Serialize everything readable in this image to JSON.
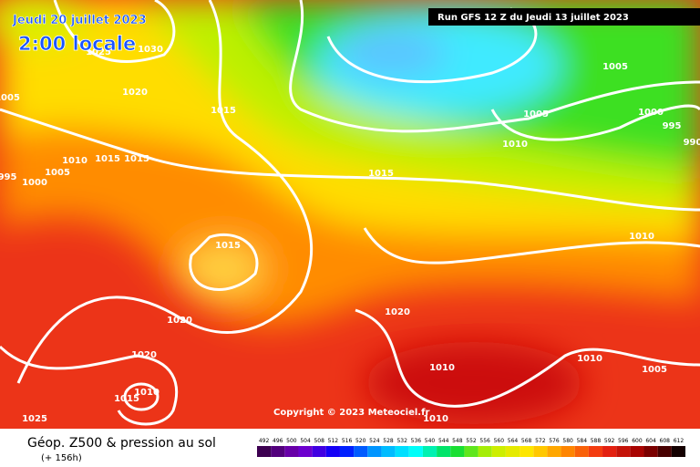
{
  "header": {
    "date": "Jeudi 20 juillet 2023",
    "time": "2:00 locale",
    "run": "Run GFS 12 Z du Jeudi 13 juillet 2023"
  },
  "copyright": "Copyright © 2023 Meteociel.fr",
  "legend": {
    "title": "Géop. Z500 & pression au sol",
    "lead": "(+ 156h)",
    "scale": [
      492,
      496,
      500,
      504,
      508,
      512,
      516,
      520,
      524,
      528,
      532,
      536,
      540,
      544,
      548,
      552,
      556,
      560,
      564,
      568,
      572,
      576,
      580,
      584,
      588,
      592,
      596,
      600,
      604,
      608,
      612
    ]
  },
  "isobar_labels": [
    1025,
    1030,
    1020,
    1005,
    1015,
    1010,
    1015,
    1015,
    1005,
    995,
    1000,
    1015,
    1015,
    1020,
    1020,
    1020,
    1010,
    1015,
    1025,
    1010,
    1010,
    1005,
    1005,
    1000,
    995,
    990,
    1010,
    1010,
    1010,
    1005
  ]
}
